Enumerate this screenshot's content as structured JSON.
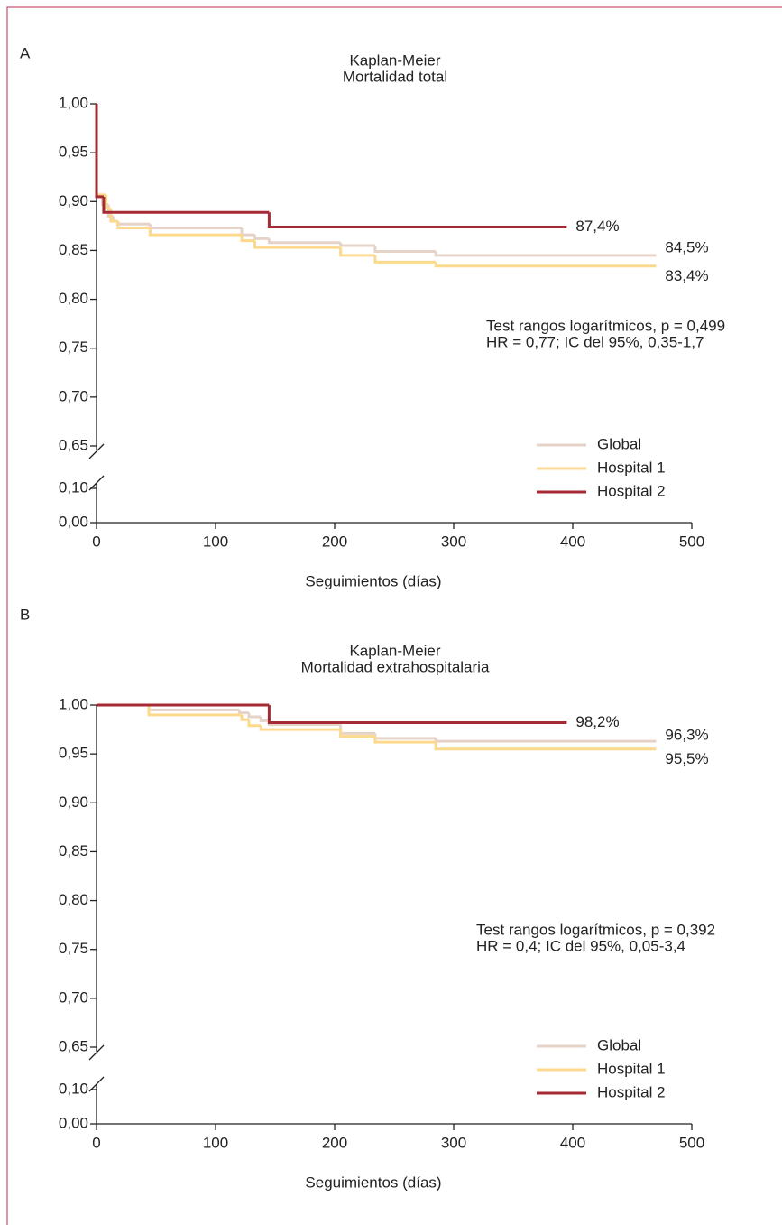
{
  "chart_data": [
    {
      "type": "step",
      "panel_label": "A",
      "title": "Kaplan-Meier",
      "subtitle": "Mortalidad total",
      "x_label": "Seguimientos (días)",
      "annotations": [
        "Test rangos logarítmicos, p = 0,499",
        "HR = 0,77; IC del 95%, 0,35-1,7"
      ],
      "xlim": [
        0,
        500
      ],
      "xticks": [
        0,
        100,
        200,
        300,
        400,
        500
      ],
      "ylim": [
        0,
        1
      ],
      "axis_break": [
        0.1,
        0.65
      ],
      "yticks": [
        {
          "value": 0,
          "label": "0,00"
        },
        {
          "value": 0.1,
          "label": "0,10"
        },
        {
          "value": 0.65,
          "label": "0,65"
        },
        {
          "value": 0.7,
          "label": "0,70"
        },
        {
          "value": 0.75,
          "label": "0,75"
        },
        {
          "value": 0.8,
          "label": "0,80"
        },
        {
          "value": 0.85,
          "label": "0,85"
        },
        {
          "value": 0.9,
          "label": "0,90"
        },
        {
          "value": 0.95,
          "label": "0,95"
        },
        {
          "value": 1,
          "label": "1,00"
        }
      ],
      "legend": "lower right",
      "series": [
        {
          "name": "Global",
          "color": "#e6d3c8",
          "end_label": "84,5%",
          "x": [
            0,
            0,
            5,
            10,
            14,
            18,
            45,
            122,
            133,
            145,
            205,
            234,
            285,
            470
          ],
          "values": [
            1,
            0.905,
            0.897,
            0.885,
            0.88,
            0.877,
            0.873,
            0.866,
            0.862,
            0.858,
            0.855,
            0.849,
            0.845,
            0.845
          ]
        },
        {
          "name": "Hospital 1",
          "color": "#fcd98c",
          "end_label": "83,4%",
          "x": [
            0,
            0,
            8,
            12,
            18,
            45,
            122,
            133,
            205,
            234,
            285,
            470
          ],
          "values": [
            1,
            0.907,
            0.893,
            0.88,
            0.873,
            0.866,
            0.86,
            0.853,
            0.845,
            0.838,
            0.834,
            0.834
          ]
        },
        {
          "name": "Hospital 2",
          "color": "#a52a34",
          "end_label": "87,4%",
          "x": [
            0,
            0,
            6,
            145,
            395
          ],
          "values": [
            1,
            0.905,
            0.889,
            0.874,
            0.874
          ]
        }
      ]
    },
    {
      "type": "step",
      "panel_label": "B",
      "title": "Kaplan-Meier",
      "subtitle": "Mortalidad extrahospitalaria",
      "x_label": "Seguimientos (días)",
      "annotations": [
        "Test rangos logarítmicos, p = 0,392",
        "HR = 0,4; IC del 95%, 0,05-3,4"
      ],
      "xlim": [
        0,
        500
      ],
      "xticks": [
        0,
        100,
        200,
        300,
        400,
        500
      ],
      "ylim": [
        0,
        1
      ],
      "axis_break": [
        0.1,
        0.65
      ],
      "yticks": [
        {
          "value": 0,
          "label": "0,00"
        },
        {
          "value": 0.1,
          "label": "0,10"
        },
        {
          "value": 0.65,
          "label": "0,65"
        },
        {
          "value": 0.7,
          "label": "0,70"
        },
        {
          "value": 0.75,
          "label": "0,75"
        },
        {
          "value": 0.8,
          "label": "0,80"
        },
        {
          "value": 0.85,
          "label": "0,85"
        },
        {
          "value": 0.9,
          "label": "0,90"
        },
        {
          "value": 0.95,
          "label": "0,95"
        },
        {
          "value": 1,
          "label": "1,00"
        }
      ],
      "legend": "lower right",
      "series": [
        {
          "name": "Global",
          "color": "#e6d3c8",
          "end_label": "96,3%",
          "x": [
            0,
            44,
            120,
            128,
            138,
            145,
            205,
            234,
            285,
            470
          ],
          "values": [
            1,
            0.995,
            0.992,
            0.988,
            0.984,
            0.98,
            0.971,
            0.966,
            0.963,
            0.963
          ]
        },
        {
          "name": "Hospital 1",
          "color": "#fcd98c",
          "end_label": "95,5%",
          "x": [
            0,
            44,
            122,
            128,
            138,
            205,
            234,
            285,
            470
          ],
          "values": [
            1,
            0.99,
            0.985,
            0.979,
            0.975,
            0.968,
            0.962,
            0.955,
            0.955
          ]
        },
        {
          "name": "Hospital 2",
          "color": "#a52a34",
          "end_label": "98,2%",
          "x": [
            0,
            145,
            395
          ],
          "values": [
            1,
            0.982,
            0.982
          ]
        }
      ]
    }
  ]
}
